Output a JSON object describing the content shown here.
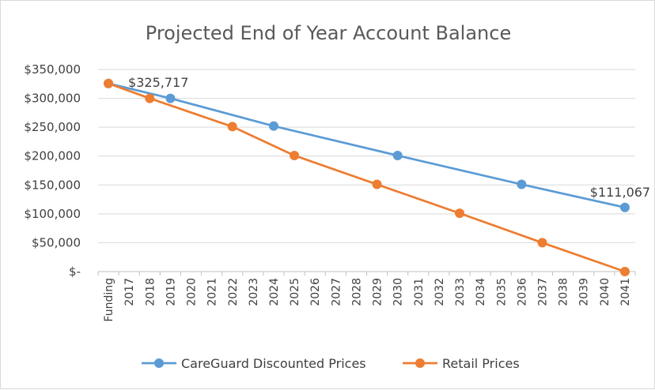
{
  "chart_data": {
    "type": "line",
    "title": "Projected End of Year Account Balance",
    "categories": [
      "Funding",
      "2017",
      "2018",
      "2019",
      "2020",
      "2021",
      "2022",
      "2023",
      "2024",
      "2025",
      "2026",
      "2027",
      "2028",
      "2029",
      "2030",
      "2031",
      "2032",
      "2033",
      "2034",
      "2035",
      "2036",
      "2037",
      "2038",
      "2039",
      "2040",
      "2041"
    ],
    "ylim": [
      0,
      350000
    ],
    "yticks": [
      {
        "value": 350000,
        "label": "$350,000"
      },
      {
        "value": 300000,
        "label": "$300,000"
      },
      {
        "value": 250000,
        "label": "$250,000"
      },
      {
        "value": 200000,
        "label": "$200,000"
      },
      {
        "value": 150000,
        "label": "$150,000"
      },
      {
        "value": 100000,
        "label": "$100,000"
      },
      {
        "value": 50000,
        "label": "$50,000"
      },
      {
        "value": 0,
        "label": "$-"
      }
    ],
    "grid": true,
    "legend_position": "bottom",
    "series": [
      {
        "name": "CareGuard Discounted Prices",
        "color": "#5b9bd5",
        "points": [
          {
            "x": "Funding",
            "y": 325717
          },
          {
            "x": "2019",
            "y": 300000
          },
          {
            "x": "2024",
            "y": 252000
          },
          {
            "x": "2030",
            "y": 201000
          },
          {
            "x": "2036",
            "y": 151000
          },
          {
            "x": "2041",
            "y": 111067
          }
        ]
      },
      {
        "name": "Retail Prices",
        "color": "#ed7d31",
        "points": [
          {
            "x": "Funding",
            "y": 325717
          },
          {
            "x": "2018",
            "y": 300000
          },
          {
            "x": "2022",
            "y": 251000
          },
          {
            "x": "2025",
            "y": 201000
          },
          {
            "x": "2029",
            "y": 151000
          },
          {
            "x": "2033",
            "y": 101000
          },
          {
            "x": "2037",
            "y": 50000
          },
          {
            "x": "2041",
            "y": 0
          }
        ]
      }
    ],
    "annotations": [
      {
        "x": "Funding",
        "y": 325717,
        "text": "$325,717"
      },
      {
        "x": "2041",
        "y": 111067,
        "text": "$111,067"
      }
    ]
  }
}
